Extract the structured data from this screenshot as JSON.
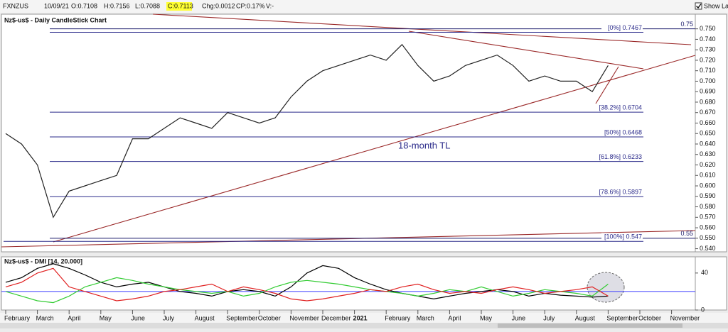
{
  "toolbar": {
    "symbol": "FXNZUS",
    "date": "10/09/21",
    "open": "O:0.7108",
    "high": "H:0.7156",
    "low": "L:0.7088",
    "close": "C:0.7113",
    "change": "Chg:0.0012",
    "change_percent": "CP:0.17%",
    "volume": "V:-",
    "show_last": "Show Last"
  },
  "chart_data": [
    {
      "type": "line",
      "title": "Nz$-us$ - Daily CandleStick Chart",
      "color": "#222222",
      "categories": [
        "February",
        null,
        "March",
        null,
        "April",
        null,
        "May",
        null,
        "June",
        null,
        "July",
        null,
        "August",
        null,
        "September",
        null,
        "October",
        null,
        "November",
        null,
        "December",
        null,
        "2021",
        null,
        "February",
        null,
        "March",
        null,
        "April",
        null,
        "May",
        null,
        "June",
        null,
        "July",
        null,
        "August",
        null,
        "September",
        null,
        "October",
        null,
        "November",
        null
      ],
      "values": [
        0.65,
        0.64,
        0.62,
        0.57,
        0.595,
        0.6,
        0.605,
        0.61,
        0.645,
        0.645,
        0.655,
        0.665,
        0.66,
        0.655,
        0.67,
        0.665,
        0.66,
        0.665,
        0.685,
        0.7,
        0.71,
        0.715,
        0.72,
        0.725,
        0.72,
        0.735,
        0.715,
        0.7,
        0.705,
        0.715,
        0.72,
        0.725,
        0.715,
        0.7,
        0.705,
        0.7,
        0.7,
        0.69,
        0.715,
        null,
        null,
        null,
        null,
        null
      ],
      "ylim": [
        0.537,
        0.764
      ],
      "yticks": [
        {
          "value": 0.54,
          "label": "0.540"
        },
        {
          "value": 0.55,
          "label": "0.550"
        },
        {
          "value": 0.56,
          "label": "0.560"
        },
        {
          "value": 0.57,
          "label": "0.570"
        },
        {
          "value": 0.58,
          "label": "0.580"
        },
        {
          "value": 0.59,
          "label": "0.590"
        },
        {
          "value": 0.6,
          "label": "0.600"
        },
        {
          "value": 0.61,
          "label": "0.610"
        },
        {
          "value": 0.62,
          "label": "0.620"
        },
        {
          "value": 0.63,
          "label": "0.630"
        },
        {
          "value": 0.64,
          "label": "0.640"
        },
        {
          "value": 0.65,
          "label": "0.650"
        },
        {
          "value": 0.66,
          "label": "0.660"
        },
        {
          "value": 0.67,
          "label": "0.670"
        },
        {
          "value": 0.68,
          "label": "0.680"
        },
        {
          "value": 0.69,
          "label": "0.690"
        },
        {
          "value": 0.7,
          "label": "0.700"
        },
        {
          "value": 0.71,
          "label": "0.710"
        },
        {
          "value": 0.72,
          "label": "0.720"
        },
        {
          "value": 0.73,
          "label": "0.730"
        },
        {
          "value": 0.74,
          "label": "0.740"
        },
        {
          "value": 0.75,
          "label": "0.750"
        }
      ],
      "fib_levels": [
        {
          "label": "[0%] 0.7467",
          "value": 0.7467
        },
        {
          "label": "[38.2%] 0.6704",
          "value": 0.6704
        },
        {
          "label": "[50%] 0.6468",
          "value": 0.6468
        },
        {
          "label": "[61.8%] 0.6233",
          "value": 0.6233
        },
        {
          "label": "[78.6%] 0.5897",
          "value": 0.5897
        },
        {
          "label": "[100%] 0.547",
          "value": 0.547
        }
      ],
      "edge_levels": [
        0.75,
        0.55
      ],
      "annotation": "18-month TL"
    },
    {
      "type": "line",
      "title": "Nz$-us$ - DMI [14, 20.000]",
      "series": [
        {
          "color": "#000000",
          "values": [
            30,
            35,
            45,
            50,
            45,
            38,
            30,
            25,
            28,
            30,
            25,
            20,
            18,
            15,
            20,
            22,
            20,
            15,
            25,
            40,
            48,
            45,
            35,
            28,
            22,
            18,
            15,
            12,
            15,
            18,
            20,
            22,
            20,
            15,
            18,
            16,
            15,
            14,
            15,
            null,
            null,
            null,
            null,
            null
          ]
        },
        {
          "color": "#33cc33",
          "values": [
            20,
            15,
            10,
            8,
            15,
            25,
            30,
            35,
            32,
            28,
            25,
            22,
            20,
            18,
            20,
            15,
            18,
            25,
            30,
            32,
            30,
            28,
            25,
            22,
            20,
            18,
            15,
            18,
            22,
            20,
            25,
            20,
            15,
            18,
            22,
            20,
            18,
            15,
            28,
            null,
            null,
            null,
            null,
            null
          ]
        },
        {
          "color": "#e02020",
          "values": [
            25,
            30,
            40,
            45,
            25,
            20,
            15,
            10,
            12,
            15,
            20,
            22,
            25,
            28,
            20,
            25,
            22,
            18,
            12,
            10,
            12,
            15,
            18,
            22,
            20,
            25,
            28,
            22,
            18,
            20,
            18,
            22,
            25,
            22,
            18,
            20,
            22,
            25,
            15,
            null,
            null,
            null,
            null,
            null
          ]
        }
      ],
      "reference_line": 20,
      "reference_color": "#3a3aff",
      "ylim": [
        0,
        56
      ],
      "yticks": [
        0,
        40
      ]
    }
  ]
}
